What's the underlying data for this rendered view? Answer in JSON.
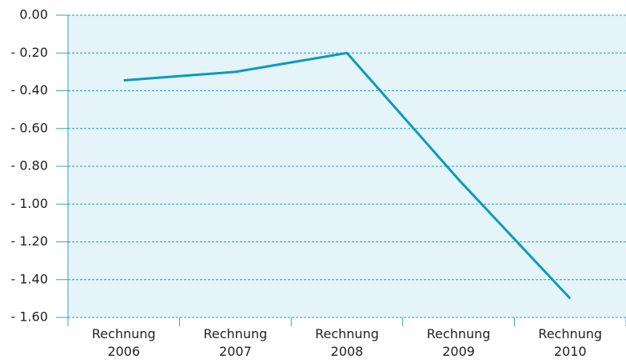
{
  "chart_data": {
    "type": "line",
    "categories": [
      "Rechnung 2006",
      "Rechnung 2007",
      "Rechnung 2008",
      "Rechnung 2009",
      "Rechnung 2010"
    ],
    "values": [
      -0.345,
      -0.3,
      -0.2,
      -0.87,
      -1.5
    ],
    "color": "#0a9bbd",
    "ylim": [
      -1.6,
      0
    ],
    "yticks": [
      {
        "value": 0,
        "label": "0.00"
      },
      {
        "value": -0.2,
        "label": "- 0.20"
      },
      {
        "value": -0.4,
        "label": "- 0.40"
      },
      {
        "value": -0.6,
        "label": "- 0.60"
      },
      {
        "value": -0.8,
        "label": "- 0.80"
      },
      {
        "value": -1.0,
        "label": "- 1.00"
      },
      {
        "value": -1.2,
        "label": "- 1.20"
      },
      {
        "value": -1.4,
        "label": "- 1.40"
      },
      {
        "value": -1.6,
        "label": "- 1.60"
      }
    ],
    "grid": true
  }
}
